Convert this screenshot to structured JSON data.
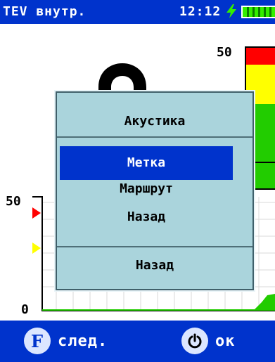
{
  "status_bar": {
    "mode_title": "TEV внутр.",
    "time": "12:12",
    "battery_icon": "battery-charging-icon"
  },
  "gauge": {
    "max_label": "50",
    "zones": {
      "red": "#ff0000",
      "yellow": "#ffff00",
      "green": "#22cc00"
    }
  },
  "chart": {
    "max_label": "50",
    "min_label": "0",
    "line_color": "#22cc00"
  },
  "menu": {
    "title": "Акустика",
    "items": [
      {
        "label": "Метка",
        "selected": true
      },
      {
        "label": "Маршрут",
        "selected": false
      },
      {
        "label": "Назад",
        "selected": false
      }
    ],
    "footer": "Назад"
  },
  "softkeys": {
    "next": {
      "key": "F",
      "label": "след."
    },
    "ok": {
      "key_icon": "power-icon",
      "label": "ок"
    }
  },
  "colors": {
    "accent": "#0033cc",
    "menu_bg": "#aad4dc"
  }
}
